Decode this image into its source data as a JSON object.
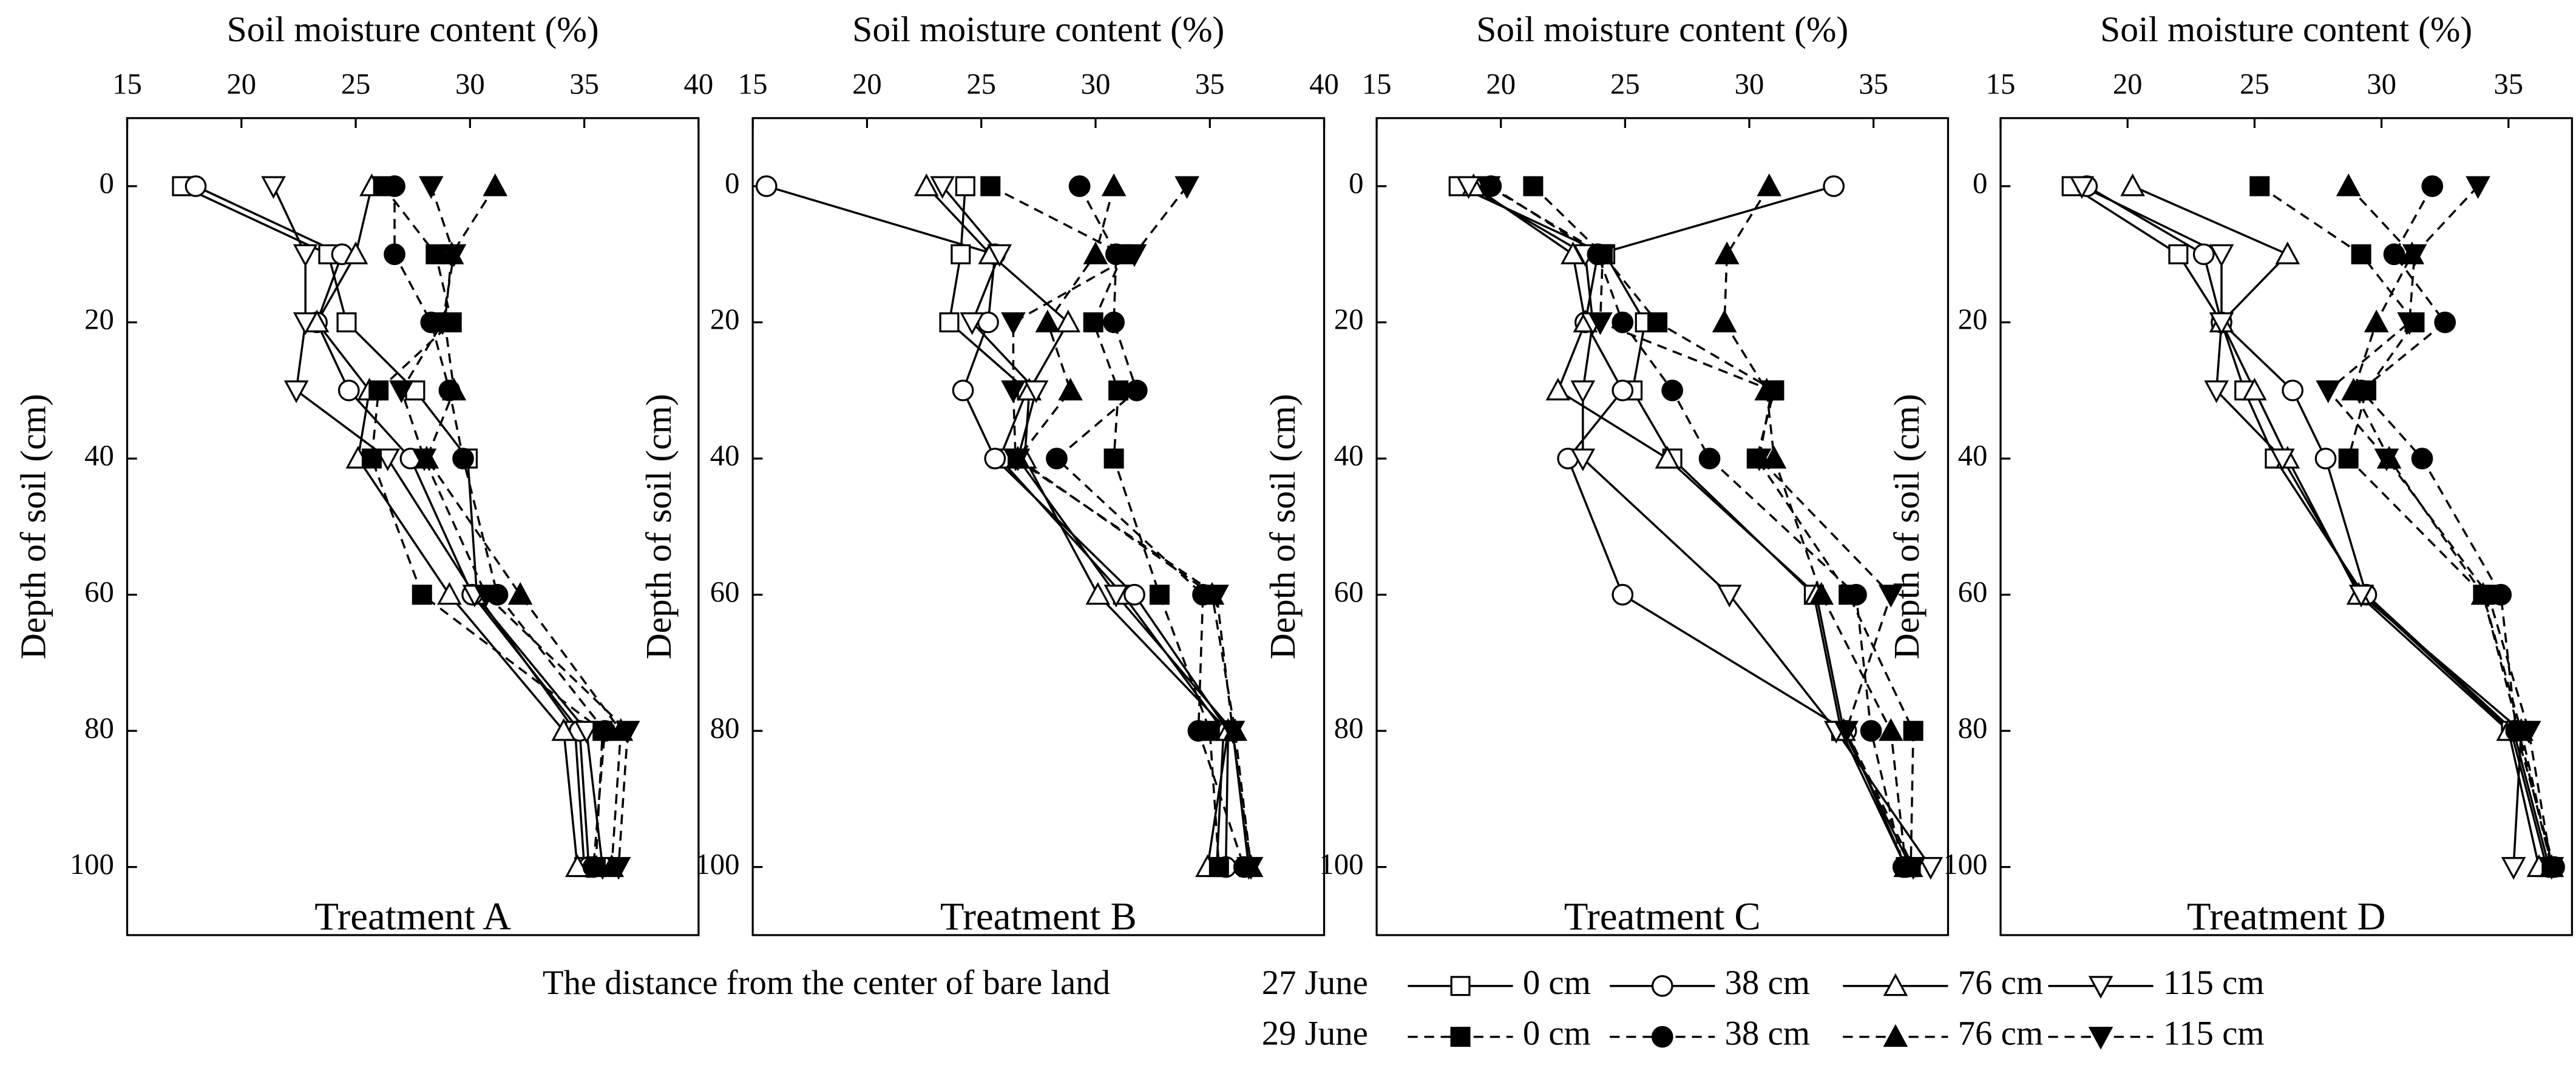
{
  "legend": {
    "title": "The distance from the center of  bare land",
    "rows": [
      "27 June",
      "29 June"
    ]
  },
  "chart_data": [
    {
      "type": "line",
      "title": "Treatment A",
      "x_label": "Soil moisture content (%)",
      "y_label": "Depth of soil (cm)",
      "xlim": [
        15,
        40
      ],
      "xticks": [
        15,
        20,
        25,
        30,
        35,
        40
      ],
      "ylim": [
        -10,
        110
      ],
      "yticks": [
        0,
        20,
        40,
        60,
        80,
        100
      ],
      "y_inverted": true,
      "y": [
        0,
        10,
        20,
        30,
        40,
        60,
        80,
        100
      ],
      "series": [
        {
          "name": "0 cm",
          "color": "#000000",
          "marker": "square",
          "filled": false,
          "dashed": false,
          "values": [
            17.4,
            23.8,
            24.6,
            27.6,
            29.9,
            30.3,
            34.6,
            35.0
          ]
        },
        {
          "name": "38 cm",
          "color": "#000000",
          "marker": "circle",
          "filled": false,
          "dashed": false,
          "values": [
            18.0,
            24.4,
            23.3,
            24.7,
            27.4,
            30.1,
            34.8,
            35.2
          ]
        },
        {
          "name": "76 cm",
          "color": "#000000",
          "marker": "triangle-up",
          "filled": false,
          "dashed": false,
          "values": [
            25.7,
            25.0,
            23.3,
            25.6,
            25.1,
            29.1,
            34.1,
            34.7
          ]
        },
        {
          "name": "115 cm",
          "color": "#000000",
          "marker": "triangle-down",
          "filled": false,
          "dashed": false,
          "values": [
            21.4,
            22.8,
            22.8,
            22.4,
            26.4,
            30.2,
            35.1,
            35.8
          ]
        },
        {
          "name": "0 cm",
          "color": "#000000",
          "marker": "square",
          "filled": true,
          "dashed": true,
          "values": [
            26.2,
            28.5,
            29.2,
            26.0,
            25.7,
            27.9,
            35.8,
            35.5
          ]
        },
        {
          "name": "38 cm",
          "color": "#000000",
          "marker": "circle",
          "filled": true,
          "dashed": true,
          "values": [
            26.7,
            26.7,
            28.3,
            29.1,
            29.7,
            31.2,
            35.9,
            35.4
          ]
        },
        {
          "name": "76 cm",
          "color": "#000000",
          "marker": "triangle-up",
          "filled": true,
          "dashed": true,
          "values": [
            31.1,
            29.2,
            28.9,
            29.3,
            28.1,
            32.2,
            36.6,
            36.2
          ]
        },
        {
          "name": "115 cm",
          "color": "#000000",
          "marker": "triangle-down",
          "filled": true,
          "dashed": true,
          "values": [
            28.3,
            29.3,
            28.8,
            27.0,
            28.0,
            30.7,
            36.9,
            36.5
          ]
        }
      ]
    },
    {
      "type": "line",
      "title": "Treatment B",
      "x_label": "Soil moisture content (%)",
      "y_label": "Depth of soil (cm)",
      "xlim": [
        15,
        40
      ],
      "xticks": [
        15,
        20,
        25,
        30,
        35,
        40
      ],
      "ylim": [
        -10,
        110
      ],
      "yticks": [
        0,
        20,
        40,
        60,
        80,
        100
      ],
      "y_inverted": true,
      "y": [
        0,
        10,
        20,
        30,
        40,
        60,
        80,
        100
      ],
      "series": [
        {
          "name": "0 cm",
          "color": "#000000",
          "marker": "square",
          "filled": false,
          "dashed": false,
          "values": [
            24.3,
            24.1,
            23.6,
            27.0,
            25.8,
            31.2,
            35.6,
            35.3
          ]
        },
        {
          "name": "38 cm",
          "color": "#000000",
          "marker": "circle",
          "filled": false,
          "dashed": false,
          "values": [
            15.6,
            25.6,
            25.3,
            24.2,
            25.6,
            31.7,
            35.8,
            35.7
          ]
        },
        {
          "name": "76 cm",
          "color": "#000000",
          "marker": "triangle-up",
          "filled": false,
          "dashed": false,
          "values": [
            22.6,
            25.4,
            28.8,
            27.1,
            26.9,
            30.1,
            35.8,
            34.9
          ]
        },
        {
          "name": "115 cm",
          "color": "#000000",
          "marker": "triangle-down",
          "filled": false,
          "dashed": false,
          "values": [
            23.3,
            25.8,
            24.6,
            27.4,
            26.6,
            30.9,
            36.0,
            36.7
          ]
        },
        {
          "name": "0 cm",
          "color": "#000000",
          "marker": "square",
          "filled": true,
          "dashed": true,
          "values": [
            25.4,
            31.2,
            29.9,
            31.0,
            30.8,
            32.8,
            35.0,
            35.4
          ]
        },
        {
          "name": "38 cm",
          "color": "#000000",
          "marker": "circle",
          "filled": true,
          "dashed": true,
          "values": [
            29.3,
            30.9,
            30.8,
            31.8,
            28.3,
            34.7,
            34.5,
            36.5
          ]
        },
        {
          "name": "76 cm",
          "color": "#000000",
          "marker": "triangle-up",
          "filled": true,
          "dashed": true,
          "values": [
            30.8,
            30.0,
            27.9,
            28.9,
            26.6,
            35.1,
            36.1,
            36.8
          ]
        },
        {
          "name": "115 cm",
          "color": "#000000",
          "marker": "triangle-down",
          "filled": true,
          "dashed": true,
          "values": [
            34.0,
            31.7,
            26.4,
            26.4,
            26.5,
            35.3,
            36.0,
            36.8
          ]
        }
      ]
    },
    {
      "type": "line",
      "title": "Treatment C",
      "x_label": "Soil moisture content (%)",
      "y_label": "Depth of soil (cm)",
      "xlim": [
        15,
        38
      ],
      "xticks": [
        15,
        20,
        25,
        30,
        35
      ],
      "ylim": [
        -10,
        110
      ],
      "yticks": [
        0,
        20,
        40,
        60,
        80,
        100
      ],
      "y_inverted": true,
      "y": [
        0,
        10,
        20,
        30,
        40,
        60,
        80,
        100
      ],
      "series": [
        {
          "name": "0 cm",
          "color": "#000000",
          "marker": "square",
          "filled": false,
          "dashed": false,
          "values": [
            18.3,
            24.2,
            25.8,
            25.3,
            26.9,
            32.6,
            33.7,
            36.3
          ]
        },
        {
          "name": "38 cm",
          "color": "#000000",
          "marker": "circle",
          "filled": false,
          "dashed": false,
          "values": [
            33.4,
            23.9,
            23.4,
            24.9,
            22.7,
            24.9,
            33.9,
            36.3
          ]
        },
        {
          "name": "76 cm",
          "color": "#000000",
          "marker": "triangle-up",
          "filled": false,
          "dashed": false,
          "values": [
            18.9,
            22.9,
            23.4,
            22.3,
            26.7,
            32.7,
            33.8,
            36.5
          ]
        },
        {
          "name": "115 cm",
          "color": "#000000",
          "marker": "triangle-down",
          "filled": false,
          "dashed": false,
          "values": [
            18.7,
            23.4,
            23.7,
            23.3,
            23.3,
            29.2,
            33.5,
            37.3
          ]
        },
        {
          "name": "0 cm",
          "color": "#000000",
          "marker": "square",
          "filled": true,
          "dashed": true,
          "values": [
            21.3,
            24.1,
            26.3,
            31.0,
            30.3,
            34.0,
            36.6,
            36.5
          ]
        },
        {
          "name": "38 cm",
          "color": "#000000",
          "marker": "circle",
          "filled": true,
          "dashed": true,
          "values": [
            19.6,
            23.9,
            24.9,
            26.9,
            28.4,
            34.3,
            34.9,
            36.2
          ]
        },
        {
          "name": "76 cm",
          "color": "#000000",
          "marker": "triangle-up",
          "filled": true,
          "dashed": true,
          "values": [
            30.8,
            29.1,
            29.0,
            30.7,
            31.0,
            32.9,
            35.7,
            36.3
          ]
        },
        {
          "name": "115 cm",
          "color": "#000000",
          "marker": "triangle-down",
          "filled": true,
          "dashed": true,
          "values": [
            19.5,
            24.1,
            24.0,
            30.9,
            30.4,
            35.7,
            33.9,
            36.6
          ]
        }
      ]
    },
    {
      "type": "line",
      "title": "Treatment D",
      "x_label": "Soil moisture content (%)",
      "y_label": "Depth of soil (cm)",
      "xlim": [
        15,
        37.5
      ],
      "xticks": [
        15,
        20,
        25,
        30,
        35
      ],
      "ylim": [
        -10,
        110
      ],
      "yticks": [
        0,
        20,
        40,
        60,
        80,
        100
      ],
      "y_inverted": true,
      "y": [
        0,
        10,
        20,
        30,
        40,
        60,
        80,
        100
      ],
      "series": [
        {
          "name": "0 cm",
          "color": "#000000",
          "marker": "square",
          "filled": false,
          "dashed": false,
          "values": [
            17.8,
            22.0,
            23.7,
            24.6,
            25.8,
            29.3,
            35.1,
            36.5
          ]
        },
        {
          "name": "38 cm",
          "color": "#000000",
          "marker": "circle",
          "filled": false,
          "dashed": false,
          "values": [
            18.4,
            23.0,
            23.7,
            26.5,
            27.8,
            29.4,
            35.2,
            36.6
          ]
        },
        {
          "name": "76 cm",
          "color": "#000000",
          "marker": "triangle-up",
          "filled": false,
          "dashed": false,
          "values": [
            20.2,
            26.3,
            23.7,
            25.0,
            26.3,
            29.1,
            35.0,
            36.2
          ]
        },
        {
          "name": "115 cm",
          "color": "#000000",
          "marker": "triangle-down",
          "filled": false,
          "dashed": false,
          "values": [
            18.2,
            23.7,
            23.7,
            23.5,
            26.1,
            29.2,
            35.5,
            35.2
          ]
        },
        {
          "name": "0 cm",
          "color": "#000000",
          "marker": "square",
          "filled": true,
          "dashed": true,
          "values": [
            25.2,
            29.2,
            31.3,
            29.4,
            28.7,
            34.0,
            35.4,
            36.7
          ]
        },
        {
          "name": "38 cm",
          "color": "#000000",
          "marker": "circle",
          "filled": true,
          "dashed": true,
          "values": [
            32.0,
            30.5,
            32.5,
            29.2,
            31.6,
            34.7,
            35.3,
            36.8
          ]
        },
        {
          "name": "76 cm",
          "color": "#000000",
          "marker": "triangle-up",
          "filled": true,
          "dashed": true,
          "values": [
            28.7,
            31.2,
            29.8,
            28.9,
            30.3,
            34.0,
            35.5,
            36.7
          ]
        },
        {
          "name": "115 cm",
          "color": "#000000",
          "marker": "triangle-down",
          "filled": true,
          "dashed": true,
          "values": [
            33.8,
            31.3,
            31.1,
            27.9,
            30.2,
            34.2,
            35.8,
            36.7
          ]
        }
      ]
    }
  ]
}
